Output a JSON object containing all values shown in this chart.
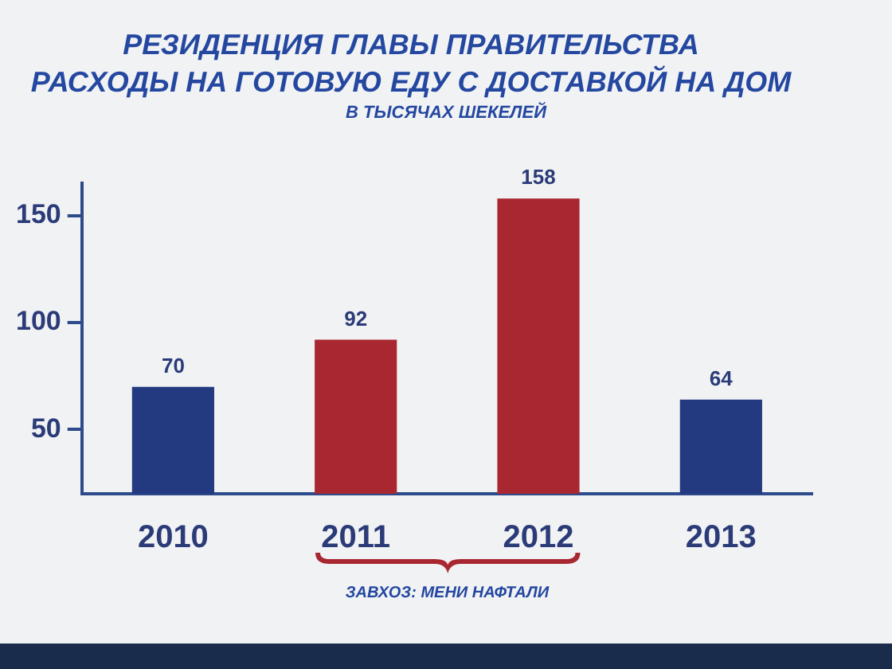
{
  "chart_data": {
    "type": "bar",
    "title": "РЕЗИДЕНЦИЯ ГЛАВЫ ПРАВИТЕЛЬСТВА",
    "subtitle": "РАСХОДЫ НА ГОТОВУЮ ЕДУ С ДОСТАВКОЙ НА ДОМ",
    "annotations": [
      "В ТЫСЯЧАХ ШЕКЕЛЕЙ",
      "ЗАВХОЗ: МЕНИ НАФТАЛИ"
    ],
    "categories": [
      "2010",
      "2011",
      "2012",
      "2013"
    ],
    "values": [
      70,
      92,
      158,
      64
    ],
    "colors": [
      "#233a80",
      "#a92731",
      "#a92731",
      "#233a80"
    ],
    "ylim": [
      20,
      165
    ],
    "yticks": [
      50,
      100,
      150
    ],
    "grid": false,
    "legend": false,
    "data_labels": true
  }
}
